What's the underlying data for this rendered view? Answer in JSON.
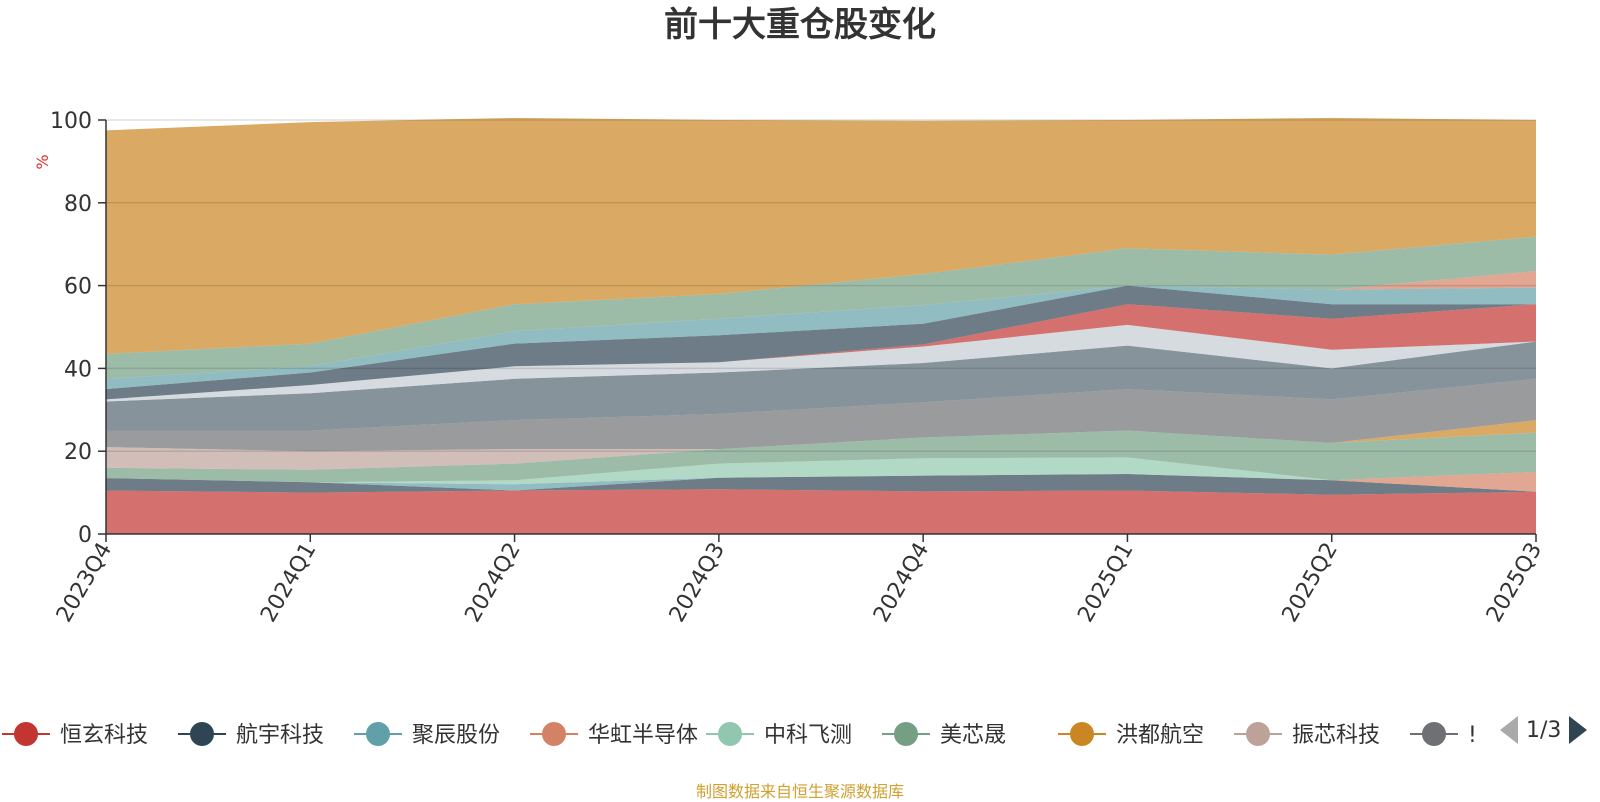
{
  "chart_data": {
    "type": "area",
    "stacked": true,
    "title": "前十大重仓股变化",
    "ylabel": "%",
    "ylim": [
      0,
      100
    ],
    "yticks": [
      0,
      20,
      40,
      60,
      80,
      100
    ],
    "categories": [
      "2023Q4",
      "2024Q1",
      "2024Q2",
      "2024Q3",
      "2024Q4",
      "2025Q1",
      "2025Q2",
      "2025Q3"
    ],
    "series": [
      {
        "name": "恒玄科技",
        "color": "#c23531",
        "values": [
          10.5,
          10.0,
          10.5,
          10.8,
          10.3,
          10.5,
          9.5,
          10.2
        ]
      },
      {
        "name": "航宇科技",
        "color": "#2f4554",
        "values": [
          3.0,
          2.5,
          0.0,
          2.8,
          3.8,
          4.0,
          3.5,
          0.0
        ]
      },
      {
        "name": "聚辰股份",
        "color": "#61a0a8",
        "values": [
          0.0,
          0.0,
          1.5,
          0.0,
          0.0,
          0.0,
          0.0,
          0.0
        ]
      },
      {
        "name": "华虹半导体",
        "color": "#d48265",
        "values": [
          0.0,
          0.0,
          0.0,
          0.0,
          0.0,
          0.0,
          0.0,
          4.8
        ]
      },
      {
        "name": "中科飞测",
        "color": "#91c7ae",
        "values": [
          0.0,
          0.0,
          1.0,
          3.4,
          4.2,
          4.0,
          0.0,
          0.0
        ]
      },
      {
        "name": "美芯晟",
        "color": "#749f83",
        "values": [
          2.5,
          3.0,
          4.0,
          3.5,
          5.0,
          6.5,
          9.0,
          9.5
        ]
      },
      {
        "name": "洪都航空",
        "color": "#ca8622",
        "values": [
          0.0,
          0.0,
          0.0,
          0.0,
          0.0,
          0.0,
          0.0,
          3.0
        ]
      },
      {
        "name": "振芯科技",
        "color": "#bda29a",
        "values": [
          5.0,
          4.5,
          3.5,
          0.0,
          0.0,
          0.0,
          0.0,
          0.0
        ]
      },
      {
        "name": "?",
        "color": "#6e7074",
        "values": [
          4.0,
          5.0,
          7.0,
          8.5,
          8.5,
          10.0,
          10.5,
          10.0
        ]
      },
      {
        "name": "?",
        "color": "#546570",
        "values": [
          7.0,
          9.0,
          10.0,
          10.0,
          9.5,
          10.5,
          7.5,
          9.0
        ]
      },
      {
        "name": "?",
        "color": "#c4ccd3",
        "values": [
          0.5,
          2.0,
          3.0,
          2.5,
          4.0,
          5.0,
          4.5,
          0.0
        ]
      },
      {
        "name": "?",
        "color": "#c23531",
        "values": [
          0.0,
          0.0,
          0.0,
          0.0,
          0.5,
          5.0,
          7.5,
          9.0
        ]
      },
      {
        "name": "?",
        "color": "#2f4554",
        "values": [
          2.5,
          3.0,
          5.5,
          6.5,
          5.0,
          4.5,
          3.5,
          0.0
        ]
      },
      {
        "name": "?",
        "color": "#61a0a8",
        "values": [
          2.5,
          1.5,
          3.0,
          4.0,
          4.5,
          0.0,
          3.5,
          4.0
        ]
      },
      {
        "name": "?",
        "color": "#d48265",
        "values": [
          0.0,
          0.0,
          0.0,
          0.0,
          0.0,
          0.0,
          0.0,
          4.0
        ]
      },
      {
        "name": "?",
        "color": "#749f83",
        "values": [
          6.0,
          5.5,
          6.5,
          6.0,
          7.5,
          9.0,
          8.5,
          8.3
        ]
      },
      {
        "name": "?",
        "color": "#ca8622",
        "values": [
          54.0,
          53.5,
          45.0,
          42.0,
          37.0,
          31.0,
          33.0,
          28.2
        ]
      }
    ]
  },
  "legend": {
    "visible_items": [
      "恒玄科技",
      "航宇科技",
      "聚辰股份",
      "华虹半导体",
      "中科飞测",
      "美芯晟",
      "洪都航空",
      "振芯科技",
      "!"
    ],
    "page_indicator": "1/3"
  },
  "footer": "制图数据来自恒生聚源数据库"
}
